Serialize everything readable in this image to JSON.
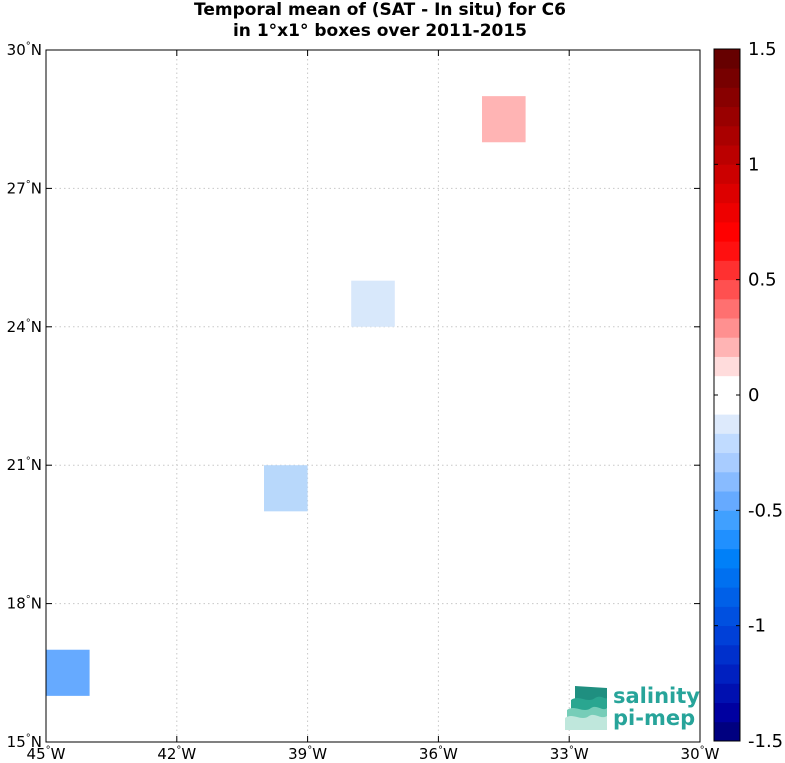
{
  "title": {
    "line1": "Temporal mean of (SAT - In situ) for C6",
    "line2": "in 1°x1° boxes over 2011-2015"
  },
  "map": {
    "lon_range": [
      -45,
      -30
    ],
    "lat_range": [
      15,
      30
    ],
    "grid": "dotted",
    "lon_ticks": [
      {
        "value": -45,
        "label": "45°W"
      },
      {
        "value": -42,
        "label": "42°W"
      },
      {
        "value": -39,
        "label": "39°W"
      },
      {
        "value": -36,
        "label": "36°W"
      },
      {
        "value": -33,
        "label": "33°W"
      },
      {
        "value": -30,
        "label": "30°W"
      }
    ],
    "lat_ticks": [
      {
        "value": 15,
        "label": "15°N"
      },
      {
        "value": 18,
        "label": "18°N"
      },
      {
        "value": 21,
        "label": "21°N"
      },
      {
        "value": 24,
        "label": "24°N"
      },
      {
        "value": 27,
        "label": "27°N"
      },
      {
        "value": 30,
        "label": "30°N"
      }
    ],
    "boxes": [
      {
        "lon": -35,
        "lat": 28,
        "value": 0.3,
        "color": "#ffb4b4"
      },
      {
        "lon": -38,
        "lat": 24,
        "value": -0.15,
        "color": "#d8e8fb"
      },
      {
        "lon": -40,
        "lat": 20,
        "value": -0.3,
        "color": "#b8d8fb"
      },
      {
        "lon": -45,
        "lat": 16,
        "value": -0.55,
        "color": "#66aaff"
      }
    ]
  },
  "colorbar": {
    "range": [
      -1.5,
      1.5
    ],
    "colors": [
      "#000080",
      "#0000a0",
      "#0010b0",
      "#0020c0",
      "#0030cc",
      "#0040d8",
      "#0050e0",
      "#0060e8",
      "#0070f0",
      "#0080f8",
      "#2090ff",
      "#40a0ff",
      "#66aaff",
      "#88bbff",
      "#a8ccff",
      "#c0dbff",
      "#ddeafc",
      "#ffffff",
      "#ffffff",
      "#ffdcdc",
      "#ffb4b4",
      "#ff9090",
      "#ff7070",
      "#ff5050",
      "#ff3030",
      "#ff1010",
      "#ff0000",
      "#ee0000",
      "#dd0000",
      "#cc0000",
      "#bb0000",
      "#aa0000",
      "#990000",
      "#880000",
      "#770000",
      "#660000"
    ],
    "ticks": [
      {
        "value": 1.5,
        "label": "1.5"
      },
      {
        "value": 1,
        "label": "1"
      },
      {
        "value": 0.5,
        "label": "0.5"
      },
      {
        "value": 0,
        "label": "0"
      },
      {
        "value": -0.5,
        "label": "-0.5"
      },
      {
        "value": -1,
        "label": "-1"
      },
      {
        "value": -1.5,
        "label": "-1.5"
      }
    ]
  },
  "logo": {
    "line1": "salinity",
    "line2": "pi-mep"
  }
}
